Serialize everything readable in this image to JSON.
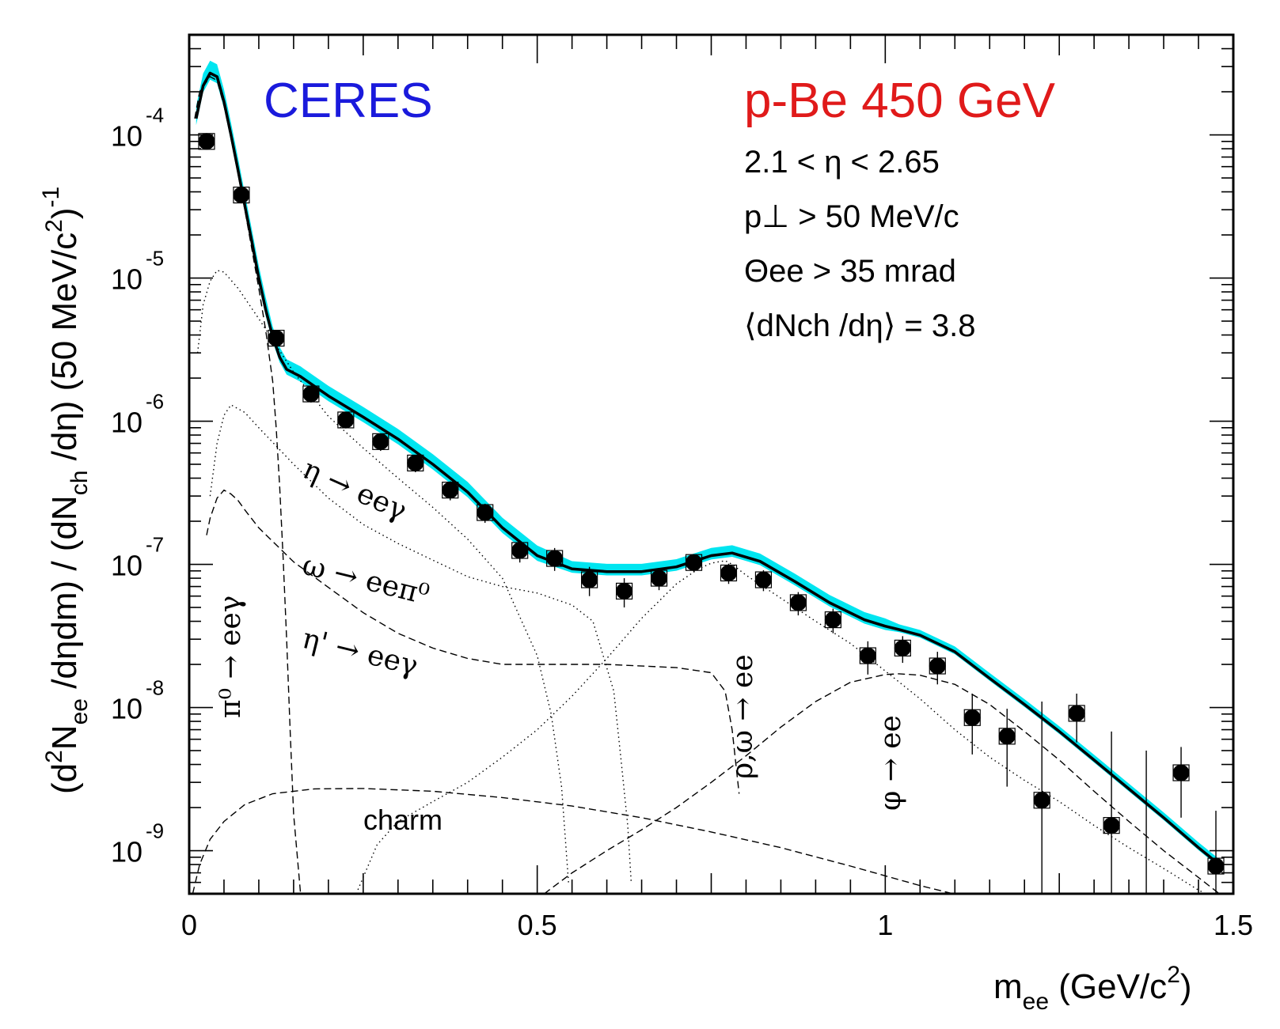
{
  "chart_data": {
    "type": "scatter",
    "title": "CERES",
    "subtitle": "p-Be 450 GeV",
    "xlabel": "m_ee (GeV/c^2)",
    "ylabel": "(d^2N_ee /dηdm) / (dN_ch /dη) (50 MeV/c^2)^-1",
    "x_ticklabels": [
      "0",
      "0.5",
      "1",
      "1.5"
    ],
    "xlim": [
      0,
      1.5
    ],
    "ylim": [
      5e-10,
      0.0005
    ],
    "y_scale": "log",
    "y_ticks": [
      0.0001,
      1e-05,
      1e-06,
      1e-07,
      1e-08,
      1e-09
    ],
    "colors": {
      "title": "#1a1adc",
      "subtitle": "#e01a1a",
      "band": "#00e5f0",
      "data": "#000000",
      "total": "#000000"
    },
    "cuts": [
      "2.1 < η < 2.65",
      "p⊥ > 50 MeV/c",
      "Θee > 35 mrad",
      "⟨dNch /dη⟩ = 3.8"
    ],
    "data_series": {
      "name": "data",
      "x": [
        0.025,
        0.075,
        0.125,
        0.175,
        0.225,
        0.275,
        0.325,
        0.375,
        0.425,
        0.475,
        0.525,
        0.575,
        0.625,
        0.675,
        0.725,
        0.775,
        0.825,
        0.875,
        0.925,
        0.975,
        1.025,
        1.075,
        1.125,
        1.175,
        1.225,
        1.275,
        1.325,
        1.375,
        1.425,
        1.475
      ],
      "y": [
        9e-05,
        3.8e-05,
        3.8e-06,
        1.55e-06,
        1.02e-06,
        7.2e-07,
        5.1e-07,
        3.3e-07,
        2.3e-07,
        1.25e-07,
        1.1e-07,
        7.8e-08,
        6.5e-08,
        8e-08,
        1.03e-07,
        8.7e-08,
        7.8e-08,
        5.4e-08,
        4.1e-08,
        2.3e-08,
        2.6e-08,
        1.95e-08,
        8.5e-09,
        6.3e-09,
        2.25e-09,
        9.1e-09,
        1.5e-09,
        null,
        3.5e-09,
        7.8e-10
      ],
      "yerr_lo": [
        8e-05,
        3.4e-05,
        3.4e-06,
        1.35e-06,
        8.9e-07,
        6.2e-07,
        4.4e-07,
        2.8e-07,
        1.95e-07,
        1.03e-07,
        9e-08,
        6e-08,
        5e-08,
        6.6e-08,
        8.8e-08,
        7.3e-08,
        6.5e-08,
        4.4e-08,
        3.3e-08,
        1.7e-08,
        2.05e-08,
        1.45e-08,
        4.7e-09,
        2.8e-09,
        3e-10,
        5.7e-09,
        3e-10,
        null,
        1.7e-09,
        5e-10
      ],
      "yerr_hi": [
        0.0001,
        4.2e-05,
        4.2e-06,
        1.75e-06,
        1.15e-06,
        8.2e-07,
        5.8e-07,
        3.8e-07,
        2.65e-07,
        1.47e-07,
        1.3e-07,
        9.6e-08,
        8e-08,
        9.4e-08,
        1.18e-07,
        1.01e-07,
        9.1e-08,
        6.4e-08,
        4.9e-08,
        2.9e-08,
        3.15e-08,
        2.45e-08,
        1.25e-08,
        9.8e-09,
        1.1e-08,
        1.25e-08,
        6.8e-09,
        5e-09,
        5.3e-09,
        1.9e-09
      ]
    },
    "total_cocktail": {
      "x": [
        0.01,
        0.02,
        0.03,
        0.04,
        0.05,
        0.06,
        0.07,
        0.08,
        0.09,
        0.1,
        0.11,
        0.12,
        0.13,
        0.14,
        0.16,
        0.2,
        0.25,
        0.3,
        0.35,
        0.4,
        0.45,
        0.5,
        0.55,
        0.6,
        0.65,
        0.7,
        0.75,
        0.78,
        0.82,
        0.87,
        0.92,
        0.97,
        1.0,
        1.02,
        1.05,
        1.1,
        1.15,
        1.2,
        1.25,
        1.3,
        1.35,
        1.4,
        1.45,
        1.48
      ],
      "y": [
        0.00013,
        0.00022,
        0.00027,
        0.000255,
        0.00017,
        0.0001,
        5.7e-05,
        3.2e-05,
        1.8e-05,
        1e-05,
        6e-06,
        3.9e-06,
        2.8e-06,
        2.3e-06,
        2.05e-06,
        1.5e-06,
        1.07e-06,
        7.5e-07,
        5e-07,
        3.2e-07,
        1.8e-07,
        1.15e-07,
        9.3e-08,
        8.9e-08,
        8.9e-08,
        9.6e-08,
        1.15e-07,
        1.2e-07,
        1.05e-07,
        7.6e-08,
        5.4e-08,
        4.1e-08,
        3.7e-08,
        3.5e-08,
        3.2e-08,
        2.45e-08,
        1.6e-08,
        1.05e-08,
        6.8e-09,
        4.3e-09,
        2.7e-09,
        1.7e-09,
        1.05e-09,
        8e-10
      ]
    },
    "band": {
      "name": "systematic band",
      "rel_half_width": [
        0.1,
        0.08,
        0.06,
        0.04
      ]
    },
    "components": [
      {
        "label": "π⁰ → eeγ",
        "style": "dashed",
        "x": [
          0.008,
          0.015,
          0.03,
          0.04,
          0.05,
          0.06,
          0.07,
          0.08,
          0.09,
          0.1,
          0.11,
          0.12,
          0.125,
          0.13,
          0.135,
          0.14,
          0.145,
          0.15,
          0.16
        ],
        "y": [
          0.00013,
          0.0002,
          0.000255,
          0.00024,
          0.00016,
          9.5e-05,
          5.4e-05,
          3e-05,
          1.6e-05,
          8.5e-06,
          4.3e-06,
          1.9e-06,
          9e-07,
          3.5e-07,
          1.1e-07,
          3e-08,
          7e-09,
          1.8e-09,
          5e-10
        ]
      },
      {
        "label": "η → eeγ",
        "style": "dotted",
        "x": [
          0.012,
          0.02,
          0.03,
          0.04,
          0.05,
          0.07,
          0.1,
          0.15,
          0.2,
          0.25,
          0.3,
          0.35,
          0.4,
          0.45,
          0.5,
          0.52,
          0.535,
          0.545
        ],
        "y": [
          3e-06,
          6.5e-06,
          9.5e-06,
          1.13e-05,
          1.1e-05,
          8.5e-06,
          5.2e-06,
          2.2e-06,
          1.08e-06,
          6.5e-07,
          4e-07,
          2.5e-07,
          1.5e-07,
          8e-08,
          2.3e-08,
          9e-09,
          2.8e-09,
          6e-10
        ]
      },
      {
        "label": "ω → eeπ⁰",
        "style": "dotted",
        "x": [
          0.03,
          0.04,
          0.05,
          0.06,
          0.08,
          0.1,
          0.15,
          0.2,
          0.25,
          0.3,
          0.35,
          0.4,
          0.45,
          0.5,
          0.55,
          0.58,
          0.61,
          0.62,
          0.63,
          0.635
        ],
        "y": [
          3e-07,
          7e-07,
          1.1e-06,
          1.3e-06,
          1.15e-06,
          9e-07,
          5e-07,
          2.9e-07,
          1.9e-07,
          1.4e-07,
          1.07e-07,
          8.2e-08,
          7e-08,
          6.3e-08,
          5.2e-08,
          4e-08,
          1.3e-08,
          4.5e-09,
          1.5e-09,
          6e-10
        ]
      },
      {
        "label": "η' → eeγ",
        "style": "dashed",
        "x": [
          0.025,
          0.03,
          0.04,
          0.05,
          0.06,
          0.07,
          0.08,
          0.1,
          0.15,
          0.2,
          0.25,
          0.3,
          0.35,
          0.4,
          0.45,
          0.5,
          0.55,
          0.6,
          0.7,
          0.75,
          0.77,
          0.78,
          0.79
        ],
        "y": [
          1.6e-07,
          2.1e-07,
          2.9e-07,
          3.3e-07,
          3.1e-07,
          2.8e-07,
          2.4e-07,
          1.8e-07,
          1.04e-07,
          6.9e-08,
          4.6e-08,
          3.3e-08,
          2.6e-08,
          2.2e-08,
          2e-08,
          2e-08,
          2e-08,
          2e-08,
          1.9e-08,
          1.75e-08,
          1.3e-08,
          7e-09,
          2.5e-09
        ]
      },
      {
        "label": "ρ,ω → ee",
        "style": "dotted",
        "x": [
          0.24,
          0.27,
          0.3,
          0.35,
          0.4,
          0.45,
          0.5,
          0.55,
          0.6,
          0.65,
          0.7,
          0.73,
          0.75,
          0.77,
          0.78,
          0.8,
          0.85,
          0.9,
          0.95,
          1.0,
          1.05,
          1.1,
          1.15,
          1.2,
          1.25,
          1.3,
          1.35,
          1.4,
          1.45,
          1.48
        ],
        "y": [
          5e-10,
          1.1e-09,
          1.6e-09,
          2.2e-09,
          3e-09,
          4.5e-09,
          7e-09,
          1.2e-08,
          2.2e-08,
          4.2e-08,
          7.3e-08,
          9.2e-08,
          1.02e-07,
          1.06e-07,
          1e-07,
          8.4e-08,
          5.8e-08,
          4e-08,
          2.8e-08,
          1.8e-08,
          1.15e-08,
          7e-09,
          4.5e-09,
          3.1e-09,
          2.2e-09,
          1.5e-09,
          1.05e-09,
          7.5e-10,
          5.3e-10,
          4.5e-10
        ]
      },
      {
        "label": "φ → ee",
        "style": "dashed",
        "x": [
          0.51,
          0.55,
          0.6,
          0.65,
          0.7,
          0.75,
          0.8,
          0.85,
          0.9,
          0.95,
          1.0,
          1.02,
          1.05,
          1.1,
          1.15,
          1.2,
          1.25,
          1.3,
          1.35,
          1.4,
          1.45,
          1.48
        ],
        "y": [
          5e-10,
          7e-10,
          1e-09,
          1.4e-09,
          2e-09,
          3e-09,
          4.6e-09,
          7.3e-09,
          1.1e-08,
          1.5e-08,
          1.7e-08,
          1.72e-08,
          1.68e-08,
          1.45e-08,
          1.05e-08,
          6.8e-09,
          4.3e-09,
          2.6e-09,
          1.6e-09,
          1e-09,
          6.5e-10,
          5e-10
        ]
      },
      {
        "label": "charm",
        "style": "dashed",
        "x": [
          0.005,
          0.015,
          0.03,
          0.05,
          0.08,
          0.12,
          0.18,
          0.25,
          0.35,
          0.45,
          0.55,
          0.65,
          0.75,
          0.85,
          0.95,
          1.05,
          1.12,
          1.16
        ],
        "y": [
          5e-10,
          8e-10,
          1.2e-09,
          1.6e-09,
          2.1e-09,
          2.5e-09,
          2.7e-09,
          2.72e-09,
          2.6e-09,
          2.35e-09,
          2.05e-09,
          1.7e-09,
          1.35e-09,
          1.05e-09,
          7.8e-10,
          5.7e-10,
          4.7e-10,
          4.2e-10
        ]
      }
    ]
  }
}
